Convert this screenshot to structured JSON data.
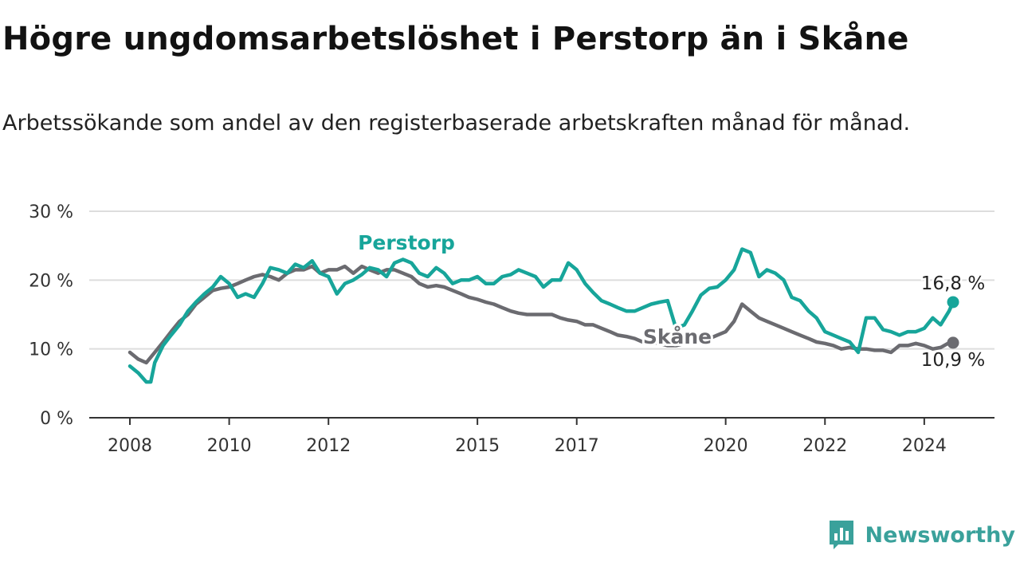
{
  "title": "Högre ungdomsarbetslöshet i Perstorp än i Skåne",
  "subtitle": "Arbetssökande som andel av den registerbaserade arbetskraften månad för månad.",
  "brand": {
    "name": "Newsworthy",
    "logo_icon": "bar-chart-badge-icon"
  },
  "colors": {
    "perstorp": "#17a59a",
    "skane": "#6b6b70",
    "grid": "#dddddd",
    "axis": "#333333"
  },
  "chart_data": {
    "type": "line",
    "title": "Högre ungdomsarbetslöshet i Perstorp än i Skåne",
    "xlabel": "",
    "ylabel": "",
    "xlim": [
      2008.0,
      2025.25
    ],
    "ylim": [
      0,
      30
    ],
    "grid": true,
    "y_ticks": [
      {
        "value": 0,
        "label": "0 %"
      },
      {
        "value": 10,
        "label": "10 %"
      },
      {
        "value": 20,
        "label": "20 %"
      },
      {
        "value": 30,
        "label": "30 %"
      }
    ],
    "x_ticks": [
      {
        "value": 2008,
        "label": "2008"
      },
      {
        "value": 2010,
        "label": "2010"
      },
      {
        "value": 2012,
        "label": "2012"
      },
      {
        "value": 2015,
        "label": "2015"
      },
      {
        "value": 2017,
        "label": "2017"
      },
      {
        "value": 2020,
        "label": "2020"
      },
      {
        "value": 2022,
        "label": "2022"
      },
      {
        "value": 2024,
        "label": "2024"
      }
    ],
    "series": [
      {
        "name": "Perstorp",
        "label": "Perstorp",
        "color": "#17a59a",
        "end_label": "16,8 %",
        "x": [
          2008.0,
          2008.17,
          2008.33,
          2008.42,
          2008.5,
          2008.67,
          2008.83,
          2009.0,
          2009.17,
          2009.33,
          2009.5,
          2009.67,
          2009.83,
          2010.0,
          2010.17,
          2010.33,
          2010.5,
          2010.67,
          2010.83,
          2011.0,
          2011.17,
          2011.33,
          2011.5,
          2011.67,
          2011.83,
          2012.0,
          2012.17,
          2012.33,
          2012.5,
          2012.67,
          2012.83,
          2013.0,
          2013.17,
          2013.33,
          2013.5,
          2013.67,
          2013.83,
          2014.0,
          2014.17,
          2014.33,
          2014.5,
          2014.67,
          2014.83,
          2015.0,
          2015.17,
          2015.33,
          2015.5,
          2015.67,
          2015.83,
          2016.0,
          2016.17,
          2016.33,
          2016.5,
          2016.67,
          2016.83,
          2017.0,
          2017.17,
          2017.33,
          2017.5,
          2017.67,
          2017.83,
          2018.0,
          2018.17,
          2018.33,
          2018.5,
          2018.67,
          2018.83,
          2019.0,
          2019.17,
          2019.33,
          2019.5,
          2019.67,
          2019.83,
          2020.0,
          2020.17,
          2020.33,
          2020.5,
          2020.67,
          2020.83,
          2021.0,
          2021.17,
          2021.33,
          2021.5,
          2021.67,
          2021.83,
          2022.0,
          2022.17,
          2022.33,
          2022.5,
          2022.67,
          2022.83,
          2023.0,
          2023.17,
          2023.33,
          2023.5,
          2023.67,
          2023.83,
          2024.0,
          2024.17,
          2024.33,
          2024.5,
          2024.58
        ],
        "values": [
          7.5,
          6.5,
          5.2,
          5.2,
          8.0,
          10.5,
          12.0,
          13.5,
          15.5,
          16.8,
          18.0,
          19.0,
          20.5,
          19.5,
          17.5,
          18.0,
          17.5,
          19.5,
          21.8,
          21.5,
          21.0,
          22.3,
          21.8,
          22.8,
          21.0,
          20.5,
          18.0,
          19.5,
          20.0,
          20.8,
          21.8,
          21.5,
          20.5,
          22.5,
          23.0,
          22.5,
          21.0,
          20.5,
          21.8,
          21.0,
          19.5,
          20.0,
          20.0,
          20.5,
          19.5,
          19.5,
          20.5,
          20.8,
          21.5,
          21.0,
          20.5,
          19.0,
          20.0,
          20.0,
          22.5,
          21.5,
          19.5,
          18.2,
          17.0,
          16.5,
          16.0,
          15.5,
          15.5,
          16.0,
          16.5,
          16.8,
          17.0,
          13.0,
          13.5,
          15.5,
          17.8,
          18.8,
          19.0,
          20.0,
          21.5,
          24.5,
          24.0,
          20.5,
          21.5,
          21.0,
          20.0,
          17.5,
          17.0,
          15.5,
          14.5,
          12.5,
          12.0,
          11.5,
          11.0,
          9.5,
          14.5,
          14.5,
          12.8,
          12.5,
          12.0,
          12.5,
          12.5,
          13.0,
          14.5,
          13.5,
          15.5,
          16.8
        ]
      },
      {
        "name": "Skåne",
        "label": "Skåne",
        "color": "#6b6b70",
        "end_label": "10,9 %",
        "x": [
          2008.0,
          2008.17,
          2008.33,
          2008.5,
          2008.67,
          2008.83,
          2009.0,
          2009.17,
          2009.33,
          2009.5,
          2009.67,
          2009.83,
          2010.0,
          2010.17,
          2010.33,
          2010.5,
          2010.67,
          2010.83,
          2011.0,
          2011.17,
          2011.33,
          2011.5,
          2011.67,
          2011.83,
          2012.0,
          2012.17,
          2012.33,
          2012.5,
          2012.67,
          2012.83,
          2013.0,
          2013.17,
          2013.33,
          2013.5,
          2013.67,
          2013.83,
          2014.0,
          2014.17,
          2014.33,
          2014.5,
          2014.67,
          2014.83,
          2015.0,
          2015.17,
          2015.33,
          2015.5,
          2015.67,
          2015.83,
          2016.0,
          2016.17,
          2016.33,
          2016.5,
          2016.67,
          2016.83,
          2017.0,
          2017.17,
          2017.33,
          2017.5,
          2017.67,
          2017.83,
          2018.0,
          2018.17,
          2018.33,
          2018.5,
          2018.67,
          2018.83,
          2019.0,
          2019.17,
          2019.33,
          2019.5,
          2019.67,
          2019.83,
          2020.0,
          2020.17,
          2020.33,
          2020.5,
          2020.67,
          2020.83,
          2021.0,
          2021.17,
          2021.33,
          2021.5,
          2021.67,
          2021.83,
          2022.0,
          2022.17,
          2022.33,
          2022.5,
          2022.67,
          2022.83,
          2023.0,
          2023.17,
          2023.33,
          2023.5,
          2023.67,
          2023.83,
          2024.0,
          2024.17,
          2024.33,
          2024.5,
          2024.58
        ],
        "values": [
          9.5,
          8.5,
          8.0,
          9.5,
          11.0,
          12.5,
          14.0,
          15.0,
          16.5,
          17.5,
          18.5,
          18.8,
          19.0,
          19.5,
          20.0,
          20.5,
          20.8,
          20.5,
          20.0,
          21.0,
          21.5,
          21.5,
          22.0,
          21.0,
          21.5,
          21.5,
          22.0,
          21.0,
          22.0,
          21.5,
          21.0,
          21.5,
          21.5,
          21.0,
          20.5,
          19.5,
          19.0,
          19.2,
          19.0,
          18.5,
          18.0,
          17.5,
          17.2,
          16.8,
          16.5,
          16.0,
          15.5,
          15.2,
          15.0,
          15.0,
          15.0,
          15.0,
          14.5,
          14.2,
          14.0,
          13.5,
          13.5,
          13.0,
          12.5,
          12.0,
          11.8,
          11.5,
          11.0,
          11.0,
          10.8,
          10.5,
          10.5,
          10.8,
          11.0,
          11.2,
          11.5,
          12.0,
          12.5,
          14.0,
          16.5,
          15.5,
          14.5,
          14.0,
          13.5,
          13.0,
          12.5,
          12.0,
          11.5,
          11.0,
          10.8,
          10.5,
          10.0,
          10.2,
          10.0,
          10.0,
          9.8,
          9.8,
          9.5,
          10.5,
          10.5,
          10.8,
          10.5,
          10.0,
          10.2,
          10.9,
          10.9
        ]
      }
    ]
  }
}
